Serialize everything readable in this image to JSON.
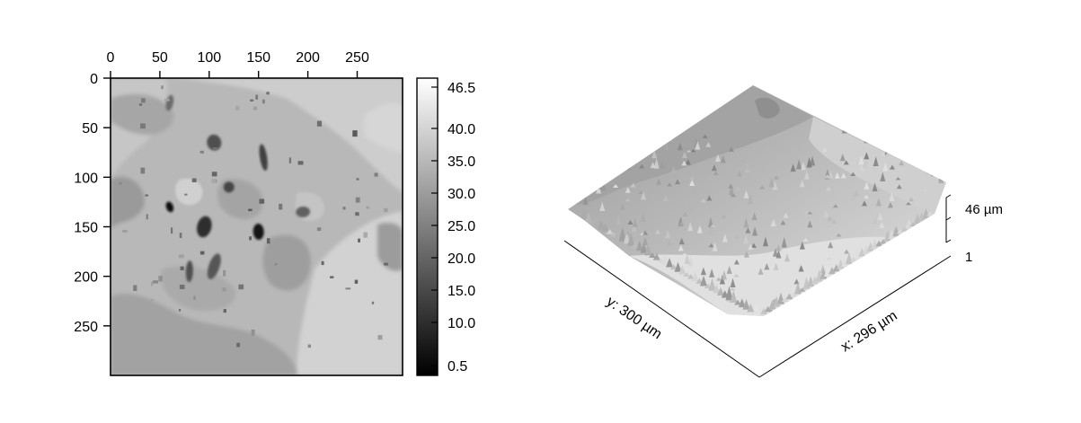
{
  "chart_data": [
    {
      "type": "heatmap",
      "x_ticks": [
        "0",
        "50",
        "100",
        "150",
        "200",
        "250"
      ],
      "x_tick_values": [
        0,
        50,
        100,
        150,
        200,
        250
      ],
      "y_ticks": [
        "0",
        "50",
        "100",
        "150",
        "200",
        "250"
      ],
      "y_tick_values": [
        0,
        50,
        100,
        150,
        200,
        250
      ],
      "xlim": [
        0,
        296
      ],
      "ylim": [
        0,
        300
      ],
      "colorbar": {
        "ticks": [
          "46.5",
          "40.0",
          "35.0",
          "30.0",
          "25.0",
          "20.0",
          "15.0",
          "10.0",
          "0.5"
        ],
        "tick_values": [
          46.5,
          40.0,
          35.0,
          30.0,
          25.0,
          20.0,
          15.0,
          10.0,
          0.5
        ],
        "range": [
          0.5,
          46.5
        ],
        "colormap": "grayscale black-to-white"
      },
      "dark_features": [
        {
          "x": 60,
          "y": 130,
          "level": 3
        },
        {
          "x": 150,
          "y": 155,
          "level": 5
        },
        {
          "x": 95,
          "y": 150,
          "level": 9
        },
        {
          "x": 155,
          "y": 80,
          "level": 12
        },
        {
          "x": 120,
          "y": 110,
          "level": 13
        },
        {
          "x": 105,
          "y": 65,
          "level": 15
        },
        {
          "x": 80,
          "y": 195,
          "level": 15
        },
        {
          "x": 105,
          "y": 190,
          "level": 16
        },
        {
          "x": 195,
          "y": 135,
          "level": 18
        },
        {
          "x": 60,
          "y": 25,
          "level": 20
        }
      ]
    },
    {
      "type": "surface",
      "x_label": "x: 296  µm",
      "y_label": "y: 300  µm",
      "z_top_label": "46  µm",
      "z_bottom_label": "1"
    }
  ]
}
